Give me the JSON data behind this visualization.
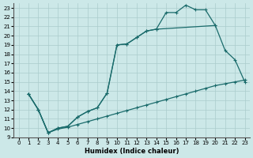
{
  "xlabel": "Humidex (Indice chaleur)",
  "bg_color": "#cce8e8",
  "grid_color": "#aacccc",
  "line_color": "#1a6b6b",
  "xlim": [
    -0.5,
    23.5
  ],
  "ylim": [
    9,
    23.5
  ],
  "xticks": [
    0,
    1,
    2,
    3,
    4,
    5,
    6,
    7,
    8,
    9,
    10,
    11,
    12,
    13,
    14,
    15,
    16,
    17,
    18,
    19,
    20,
    21,
    22,
    23
  ],
  "yticks": [
    9,
    10,
    11,
    12,
    13,
    14,
    15,
    16,
    17,
    18,
    19,
    20,
    21,
    22,
    23
  ],
  "line1_x": [
    1,
    2,
    3,
    4,
    5,
    6,
    7,
    8,
    9,
    10,
    11,
    12,
    13,
    14,
    15,
    16,
    17,
    18,
    19,
    20,
    21,
    22,
    23
  ],
  "line1_y": [
    13.7,
    12.0,
    9.5,
    10.0,
    10.2,
    11.2,
    11.8,
    12.2,
    13.8,
    19.0,
    19.1,
    19.8,
    20.5,
    20.7,
    22.5,
    22.5,
    23.3,
    22.8,
    22.8,
    21.1,
    18.4,
    17.4,
    15.0
  ],
  "line2_x": [
    1,
    2,
    3,
    4,
    5,
    6,
    7,
    8,
    9,
    10,
    11,
    12,
    13,
    14,
    20
  ],
  "line2_y": [
    13.7,
    12.0,
    9.5,
    10.0,
    10.2,
    11.2,
    11.8,
    12.2,
    13.8,
    19.0,
    19.1,
    19.8,
    20.5,
    20.7,
    21.1
  ],
  "line3_x": [
    1,
    2,
    3,
    4,
    5,
    6,
    7,
    8,
    9,
    10,
    11,
    12,
    13,
    14,
    15,
    16,
    17,
    18,
    19,
    20,
    21,
    22,
    23
  ],
  "line3_y": [
    13.7,
    12.0,
    9.5,
    9.9,
    10.1,
    10.4,
    10.7,
    11.0,
    11.3,
    11.6,
    11.9,
    12.2,
    12.5,
    12.8,
    13.1,
    13.4,
    13.7,
    14.0,
    14.3,
    14.6,
    14.8,
    15.0,
    15.2
  ],
  "marker": "+"
}
